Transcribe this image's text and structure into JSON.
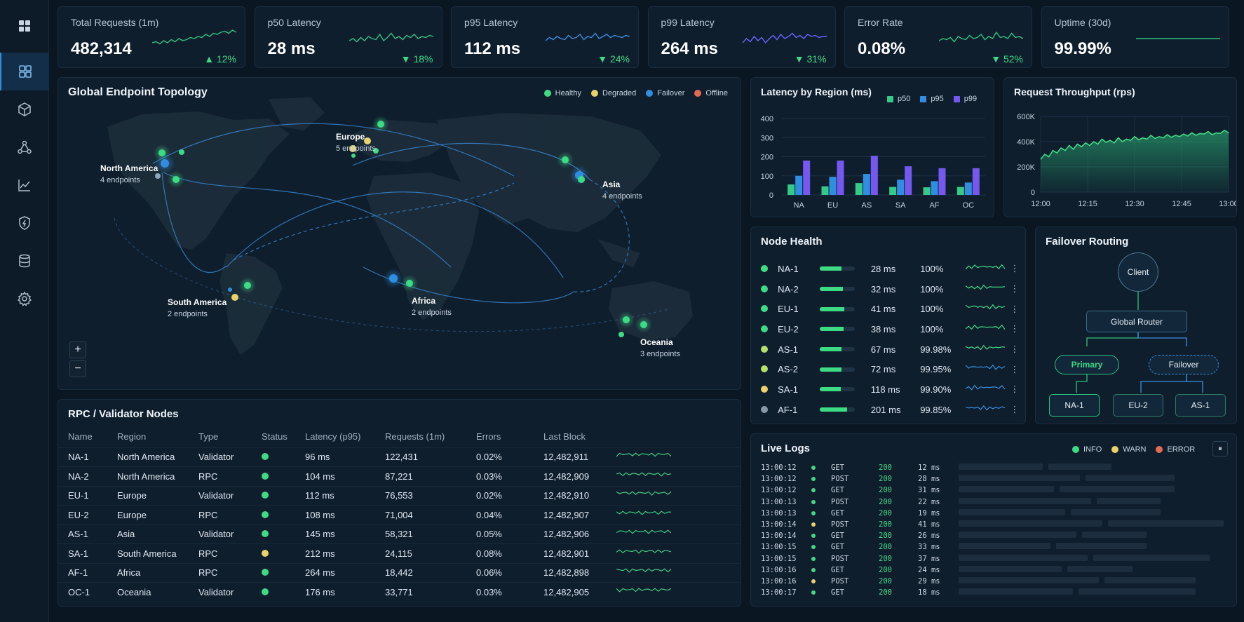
{
  "kpis": [
    {
      "label": "Total Requests (1m)",
      "value": "482,314",
      "delta": "12%",
      "dir": "up",
      "color": "#2ec27e",
      "spark": [
        0.3,
        0.35,
        0.25,
        0.4,
        0.3,
        0.45,
        0.35,
        0.5,
        0.4,
        0.45,
        0.55,
        0.5,
        0.6,
        0.55,
        0.7,
        0.6,
        0.75,
        0.7,
        0.8,
        0.85,
        0.75,
        0.9,
        0.8
      ]
    },
    {
      "label": "p50 Latency",
      "value": "28 ms",
      "delta": "18%",
      "dir": "down",
      "color": "#2ec27e",
      "spark": [
        0.4,
        0.5,
        0.35,
        0.55,
        0.4,
        0.6,
        0.5,
        0.45,
        0.7,
        0.4,
        0.55,
        0.75,
        0.5,
        0.6,
        0.45,
        0.65,
        0.55,
        0.7,
        0.5,
        0.6,
        0.55,
        0.65,
        0.6
      ]
    },
    {
      "label": "p95 Latency",
      "value": "112 ms",
      "delta": "24%",
      "dir": "down",
      "color": "#3b8fe0",
      "spark": [
        0.4,
        0.55,
        0.45,
        0.6,
        0.5,
        0.45,
        0.65,
        0.5,
        0.55,
        0.7,
        0.45,
        0.6,
        0.55,
        0.75,
        0.5,
        0.6,
        0.7,
        0.55,
        0.65,
        0.6,
        0.55,
        0.65,
        0.6
      ]
    },
    {
      "label": "p99 Latency",
      "value": "264 ms",
      "delta": "31%",
      "dir": "down",
      "color": "#6c63ff",
      "spark": [
        0.3,
        0.5,
        0.35,
        0.6,
        0.4,
        0.55,
        0.3,
        0.5,
        0.65,
        0.45,
        0.7,
        0.5,
        0.6,
        0.75,
        0.55,
        0.65,
        0.5,
        0.7,
        0.6,
        0.65,
        0.55,
        0.6,
        0.6
      ]
    },
    {
      "label": "Error Rate",
      "value": "0.08%",
      "delta": "52%",
      "dir": "down",
      "color": "#2ec27e",
      "spark": [
        0.4,
        0.5,
        0.45,
        0.55,
        0.35,
        0.6,
        0.5,
        0.45,
        0.65,
        0.5,
        0.55,
        0.7,
        0.45,
        0.6,
        0.5,
        0.8,
        0.55,
        0.6,
        0.5,
        0.75,
        0.55,
        0.6,
        0.5
      ]
    },
    {
      "label": "Uptime (30d)",
      "value": "99.99%",
      "delta": "",
      "dir": "",
      "color": "#2ec27e",
      "spark": [
        0.5,
        0.5,
        0.5,
        0.5,
        0.5,
        0.5,
        0.5,
        0.5,
        0.5,
        0.5,
        0.5,
        0.5
      ]
    }
  ],
  "sidebar": [
    "apps-icon",
    "dashboard-icon",
    "cube-icon",
    "nodes-icon",
    "chart-icon",
    "shield-icon",
    "database-icon",
    "settings-icon"
  ],
  "topology": {
    "title": "Global Endpoint Topology",
    "legend": [
      {
        "label": "Healthy",
        "color": "#3ddc84"
      },
      {
        "label": "Degraded",
        "color": "#e8d26a"
      },
      {
        "label": "Failover",
        "color": "#2f8ee0"
      },
      {
        "label": "Offline",
        "color": "#e26a55"
      }
    ],
    "regions": [
      {
        "name": "North America",
        "sub": "4 endpoints"
      },
      {
        "name": "Europe",
        "sub": "5 endpoints"
      },
      {
        "name": "Asia",
        "sub": "4 endpoints"
      },
      {
        "name": "South America",
        "sub": "2 endpoints"
      },
      {
        "name": "Africa",
        "sub": "2 endpoints"
      },
      {
        "name": "Oceania",
        "sub": "3 endpoints"
      }
    ],
    "zoom_in": "+",
    "zoom_out": "−"
  },
  "latency_chart": {
    "title": "Latency by Region (ms)",
    "chart_data": {
      "type": "bar",
      "categories": [
        "NA",
        "EU",
        "AS",
        "SA",
        "AF",
        "OC"
      ],
      "series": [
        {
          "name": "p50",
          "color": "#35c98a",
          "values": [
            55,
            45,
            62,
            42,
            40,
            42
          ]
        },
        {
          "name": "p95",
          "color": "#2f8ee0",
          "values": [
            100,
            95,
            110,
            80,
            72,
            65
          ]
        },
        {
          "name": "p99",
          "color": "#7458f0",
          "values": [
            180,
            180,
            205,
            150,
            140,
            140
          ]
        }
      ],
      "yticks": [
        "0",
        "100",
        "200",
        "300",
        "400"
      ],
      "ylim": [
        0,
        400
      ]
    }
  },
  "throughput_chart": {
    "title": "Request Throughput (rps)",
    "chart_data": {
      "type": "area",
      "yticks": [
        "0",
        "200K",
        "400K",
        "600K"
      ],
      "xticks": [
        "12:00",
        "12:15",
        "12:30",
        "12:45",
        "13:00"
      ],
      "ylim": [
        0,
        600
      ],
      "values": [
        260,
        300,
        280,
        330,
        310,
        350,
        330,
        370,
        340,
        380,
        360,
        390,
        370,
        400,
        380,
        420,
        395,
        410,
        390,
        430,
        400,
        420,
        410,
        440,
        415,
        430,
        420,
        450,
        425,
        440,
        430,
        455,
        435,
        450,
        440,
        460,
        445,
        470,
        450,
        465,
        460,
        480,
        455,
        470,
        465,
        490,
        470
      ]
    }
  },
  "node_health": {
    "title": "Node Health",
    "rows": [
      {
        "name": "NA-1",
        "latency": "28 ms",
        "uptime": "100%",
        "color": "#3ddc84",
        "bar": 0.62,
        "spark": "#3ddc84"
      },
      {
        "name": "NA-2",
        "latency": "32 ms",
        "uptime": "100%",
        "color": "#3ddc84",
        "bar": 0.66,
        "spark": "#3ddc84"
      },
      {
        "name": "EU-1",
        "latency": "41 ms",
        "uptime": "100%",
        "color": "#3ddc84",
        "bar": 0.7,
        "spark": "#3ddc84"
      },
      {
        "name": "EU-2",
        "latency": "38 ms",
        "uptime": "100%",
        "color": "#3ddc84",
        "bar": 0.68,
        "spark": "#3ddc84"
      },
      {
        "name": "AS-1",
        "latency": "67 ms",
        "uptime": "99.98%",
        "color": "#b5e06a",
        "bar": 0.62,
        "spark": "#3ddc84"
      },
      {
        "name": "AS-2",
        "latency": "72 ms",
        "uptime": "99.95%",
        "color": "#b5e06a",
        "bar": 0.62,
        "spark": "#3b8fe0"
      },
      {
        "name": "SA-1",
        "latency": "118 ms",
        "uptime": "99.90%",
        "color": "#e8d26a",
        "bar": 0.6,
        "spark": "#3b8fe0"
      },
      {
        "name": "AF-1",
        "latency": "201 ms",
        "uptime": "99.85%",
        "color": "#8a98a6",
        "bar": 0.78,
        "spark": "#3b8fe0"
      }
    ]
  },
  "failover": {
    "title": "Failover Routing",
    "client": "Client",
    "router": "Global Router",
    "primary": "Primary",
    "failover": "Failover",
    "nodes": [
      "NA-1",
      "EU-2",
      "AS-1"
    ]
  },
  "rpc": {
    "title": "RPC / Validator Nodes",
    "columns": [
      "Name",
      "Region",
      "Type",
      "Status",
      "Latency (p95)",
      "Requests (1m)",
      "Errors",
      "Last Block"
    ],
    "rows": [
      {
        "name": "NA-1",
        "region": "North America",
        "type": "Validator",
        "status": "#3ddc84",
        "latency": "96 ms",
        "requests": "122,431",
        "errors": "0.02%",
        "block": "12,482,911"
      },
      {
        "name": "NA-2",
        "region": "North America",
        "type": "RPC",
        "status": "#3ddc84",
        "latency": "104 ms",
        "requests": "87,221",
        "errors": "0.03%",
        "block": "12,482,909"
      },
      {
        "name": "EU-1",
        "region": "Europe",
        "type": "Validator",
        "status": "#3ddc84",
        "latency": "112 ms",
        "requests": "76,553",
        "errors": "0.02%",
        "block": "12,482,910"
      },
      {
        "name": "EU-2",
        "region": "Europe",
        "type": "RPC",
        "status": "#3ddc84",
        "latency": "108 ms",
        "requests": "71,004",
        "errors": "0.04%",
        "block": "12,482,907"
      },
      {
        "name": "AS-1",
        "region": "Asia",
        "type": "Validator",
        "status": "#3ddc84",
        "latency": "145 ms",
        "requests": "58,321",
        "errors": "0.05%",
        "block": "12,482,906"
      },
      {
        "name": "SA-1",
        "region": "South America",
        "type": "RPC",
        "status": "#e8d26a",
        "latency": "212 ms",
        "requests": "24,115",
        "errors": "0.08%",
        "block": "12,482,901"
      },
      {
        "name": "AF-1",
        "region": "Africa",
        "type": "RPC",
        "status": "#3ddc84",
        "latency": "264 ms",
        "requests": "18,442",
        "errors": "0.06%",
        "block": "12,482,898"
      },
      {
        "name": "OC-1",
        "region": "Oceania",
        "type": "Validator",
        "status": "#3ddc84",
        "latency": "176 ms",
        "requests": "33,771",
        "errors": "0.03%",
        "block": "12,482,905"
      }
    ]
  },
  "logs": {
    "title": "Live Logs",
    "legend": [
      {
        "label": "INFO",
        "color": "#3ddc84"
      },
      {
        "label": "WARN",
        "color": "#e8d26a"
      },
      {
        "label": "ERROR",
        "color": "#e26a55"
      }
    ],
    "pause": "⏸",
    "rows": [
      {
        "time": "13:00:12",
        "level": "#3ddc84",
        "method": "GET",
        "code": "200",
        "dur": "12 ms"
      },
      {
        "time": "13:00:12",
        "level": "#3ddc84",
        "method": "POST",
        "code": "200",
        "dur": "28 ms"
      },
      {
        "time": "13:00:12",
        "level": "#3ddc84",
        "method": "GET",
        "code": "200",
        "dur": "31 ms"
      },
      {
        "time": "13:00:13",
        "level": "#3ddc84",
        "method": "POST",
        "code": "200",
        "dur": "22 ms"
      },
      {
        "time": "13:00:13",
        "level": "#3ddc84",
        "method": "GET",
        "code": "200",
        "dur": "19 ms"
      },
      {
        "time": "13:00:14",
        "level": "#e8d26a",
        "method": "POST",
        "code": "200",
        "dur": "41 ms"
      },
      {
        "time": "13:00:14",
        "level": "#3ddc84",
        "method": "GET",
        "code": "200",
        "dur": "26 ms"
      },
      {
        "time": "13:00:15",
        "level": "#3ddc84",
        "method": "GET",
        "code": "200",
        "dur": "33 ms"
      },
      {
        "time": "13:00:15",
        "level": "#3ddc84",
        "method": "POST",
        "code": "200",
        "dur": "37 ms"
      },
      {
        "time": "13:00:16",
        "level": "#3ddc84",
        "method": "GET",
        "code": "200",
        "dur": "24 ms"
      },
      {
        "time": "13:00:16",
        "level": "#e8d26a",
        "method": "POST",
        "code": "200",
        "dur": "29 ms"
      },
      {
        "time": "13:00:17",
        "level": "#3ddc84",
        "method": "GET",
        "code": "200",
        "dur": "18 ms"
      }
    ]
  }
}
